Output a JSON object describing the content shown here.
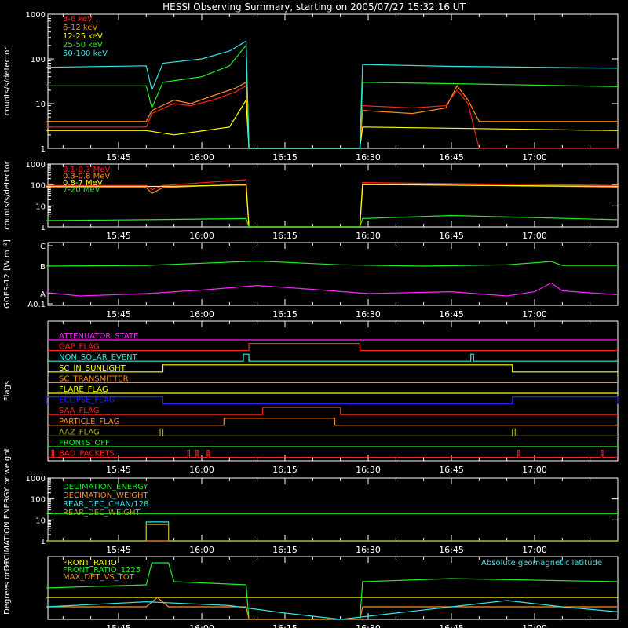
{
  "title": "HESSI Observing Summary, starting on 2005/07/27 15:32:16 UT",
  "colors": {
    "background": "#000000",
    "axes": "#ffffff",
    "red": "#ff2020",
    "orange": "#ff8c1a",
    "yellow": "#ffff00",
    "green": "#22ee22",
    "cyan": "#33e6e6",
    "magenta": "#ff22ff",
    "blue": "#2222ff",
    "olive": "#a8a820"
  },
  "time_axis": {
    "start": "15:32:16",
    "end": "17:15",
    "ticks": [
      "15:45",
      "16:00",
      "16:15",
      "16:30",
      "16:45",
      "17:00"
    ]
  },
  "chart_data": [
    {
      "type": "line",
      "ylabel": "counts/s/detector",
      "yscale": "log",
      "ylim": [
        1,
        1000
      ],
      "yticks": [
        "1",
        "10",
        "100",
        "1000"
      ],
      "legend_placement": "top-left",
      "series": [
        {
          "name": "3-6 keV",
          "color": "red",
          "points": [
            [
              "15:32",
              3
            ],
            [
              "15:40",
              3
            ],
            [
              "15:50",
              3
            ],
            [
              "15:51",
              6
            ],
            [
              "15:55",
              10
            ],
            [
              "15:58",
              9
            ],
            [
              "16:02",
              12
            ],
            [
              "16:06",
              18
            ],
            [
              "16:08",
              25
            ],
            [
              "16:08.5",
              1
            ],
            [
              "16:28.5",
              1
            ],
            [
              "16:29",
              9
            ],
            [
              "16:38",
              8
            ],
            [
              "16:44",
              9
            ],
            [
              "16:46",
              20
            ],
            [
              "16:48",
              10
            ],
            [
              "16:50",
              1
            ],
            [
              "17:15",
              1
            ]
          ]
        },
        {
          "name": "6-12 keV",
          "color": "orange",
          "points": [
            [
              "15:32",
              4
            ],
            [
              "15:50",
              4
            ],
            [
              "15:51",
              7
            ],
            [
              "15:55",
              12
            ],
            [
              "15:58",
              10
            ],
            [
              "16:02",
              15
            ],
            [
              "16:06",
              22
            ],
            [
              "16:08",
              30
            ],
            [
              "16:08.5",
              1
            ],
            [
              "16:28.5",
              1
            ],
            [
              "16:29",
              7
            ],
            [
              "16:38",
              6
            ],
            [
              "16:44",
              8
            ],
            [
              "16:46",
              25
            ],
            [
              "16:48",
              12
            ],
            [
              "16:50",
              4
            ],
            [
              "17:15",
              4
            ]
          ]
        },
        {
          "name": "12-25 keV",
          "color": "yellow",
          "points": [
            [
              "15:32",
              2.5
            ],
            [
              "15:50",
              2.5
            ],
            [
              "15:55",
              2
            ],
            [
              "16:05",
              3
            ],
            [
              "16:08",
              12
            ],
            [
              "16:08.5",
              1
            ],
            [
              "16:28.5",
              1
            ],
            [
              "16:29",
              3
            ],
            [
              "17:15",
              2.5
            ]
          ]
        },
        {
          "name": "25-50 keV",
          "color": "green",
          "points": [
            [
              "15:32",
              25
            ],
            [
              "15:50",
              25
            ],
            [
              "15:51",
              8
            ],
            [
              "15:53",
              30
            ],
            [
              "16:00",
              40
            ],
            [
              "16:05",
              70
            ],
            [
              "16:08",
              200
            ],
            [
              "16:08.5",
              1
            ],
            [
              "16:28.5",
              1
            ],
            [
              "16:29",
              30
            ],
            [
              "16:45",
              28
            ],
            [
              "17:15",
              24
            ]
          ]
        },
        {
          "name": "50-100 keV",
          "color": "cyan",
          "points": [
            [
              "15:32",
              65
            ],
            [
              "15:50",
              70
            ],
            [
              "15:51",
              20
            ],
            [
              "15:53",
              80
            ],
            [
              "16:00",
              100
            ],
            [
              "16:05",
              150
            ],
            [
              "16:08",
              250
            ],
            [
              "16:08.5",
              1
            ],
            [
              "16:28.5",
              1
            ],
            [
              "16:29",
              75
            ],
            [
              "16:45",
              68
            ],
            [
              "17:15",
              62
            ]
          ]
        }
      ]
    },
    {
      "type": "line",
      "ylabel": "counts/s/detector",
      "yscale": "log",
      "ylim": [
        1,
        1000
      ],
      "yticks": [
        "1",
        "10",
        "100",
        "1000"
      ],
      "legend_placement": "top-left",
      "series": [
        {
          "name": "0.1-0.3 MeV",
          "color": "red",
          "points": [
            [
              "15:32",
              95
            ],
            [
              "15:50",
              95
            ],
            [
              "15:51",
              60
            ],
            [
              "15:53",
              95
            ],
            [
              "16:08",
              180
            ],
            [
              "16:08.5",
              1
            ],
            [
              "16:28.5",
              1
            ],
            [
              "16:29",
              130
            ],
            [
              "17:15",
              95
            ]
          ]
        },
        {
          "name": "0.3-0.8 MeV",
          "color": "orange",
          "points": [
            [
              "15:32",
              75
            ],
            [
              "15:50",
              75
            ],
            [
              "15:51",
              40
            ],
            [
              "15:53",
              75
            ],
            [
              "16:08",
              110
            ],
            [
              "16:08.5",
              1
            ],
            [
              "16:28.5",
              1
            ],
            [
              "16:29",
              110
            ],
            [
              "17:15",
              80
            ]
          ]
        },
        {
          "name": "0.8-7 MeV",
          "color": "yellow",
          "points": [
            [
              "15:32",
              85
            ],
            [
              "15:50",
              85
            ],
            [
              "15:53",
              85
            ],
            [
              "16:08",
              100
            ],
            [
              "16:08.5",
              1
            ],
            [
              "16:28.5",
              1
            ],
            [
              "16:29",
              105
            ],
            [
              "17:15",
              85
            ]
          ]
        },
        {
          "name": "7-20 MeV",
          "color": "green",
          "points": [
            [
              "15:32",
              2
            ],
            [
              "15:50",
              2.2
            ],
            [
              "16:08",
              2.5
            ],
            [
              "16:08.5",
              1
            ],
            [
              "16:28.5",
              1
            ],
            [
              "16:29",
              2.5
            ],
            [
              "16:45",
              3.5
            ],
            [
              "17:15",
              2.2
            ]
          ]
        }
      ]
    },
    {
      "type": "line",
      "ylabel": "GOES-12 [W m⁻²]",
      "yscale": "log",
      "ylim_ticks": [
        "A0.1",
        "A",
        "B",
        "C"
      ],
      "series": [
        {
          "name": "",
          "color": "green",
          "points": [
            [
              "15:32",
              1.4e-07
            ],
            [
              "15:50",
              1.5e-07
            ],
            [
              "16:10",
              2.3e-07
            ],
            [
              "16:25",
              1.6e-07
            ],
            [
              "16:40",
              1.4e-07
            ],
            [
              "16:55",
              1.6e-07
            ],
            [
              "17:03",
              2.2e-07
            ],
            [
              "17:05",
              1.5e-07
            ],
            [
              "17:15",
              1.5e-07
            ]
          ]
        },
        {
          "name": "",
          "color": "magenta",
          "points": [
            [
              "15:32",
              1.1e-08
            ],
            [
              "15:38",
              8e-09
            ],
            [
              "15:50",
              1e-08
            ],
            [
              "16:00",
              1.4e-08
            ],
            [
              "16:10",
              2.2e-08
            ],
            [
              "16:20",
              1.5e-08
            ],
            [
              "16:30",
              1e-08
            ],
            [
              "16:45",
              1.2e-08
            ],
            [
              "16:55",
              8e-09
            ],
            [
              "17:00",
              1.2e-08
            ],
            [
              "17:03",
              2.8e-08
            ],
            [
              "17:05",
              1.3e-08
            ],
            [
              "17:15",
              9e-09
            ]
          ]
        }
      ]
    },
    {
      "type": "line",
      "ylabel": "Flags",
      "flags": [
        {
          "name": "ATTENUATOR_STATE",
          "color": "magenta",
          "raised": []
        },
        {
          "name": "GAP_FLAG",
          "color": "red",
          "raised": [
            [
              "16:08.5",
              "16:28.5"
            ]
          ]
        },
        {
          "name": "NON_SOLAR_EVENT",
          "color": "cyan",
          "raised": [
            [
              "16:07.5",
              "16:08.5"
            ],
            [
              "16:48.5",
              "16:49"
            ]
          ]
        },
        {
          "name": "SC_IN_SUNLIGHT",
          "color": "yellow",
          "raised": [
            [
              "15:53",
              "16:56"
            ]
          ]
        },
        {
          "name": "SC_TRANSMITTER",
          "color": "orange",
          "raised": []
        },
        {
          "name": "FLARE_FLAG",
          "color": "yellow",
          "raised": []
        },
        {
          "name": "ECLIPSE_FLAG",
          "color": "blue",
          "raised": [
            [
              "15:32",
              "15:53"
            ],
            [
              "16:56",
              "17:15"
            ]
          ]
        },
        {
          "name": "SAA_FLAG",
          "color": "red",
          "raised": [
            [
              "16:11",
              "16:25"
            ]
          ]
        },
        {
          "name": "PARTICLE_FLAG",
          "color": "orange",
          "raised": [
            [
              "16:04",
              "16:24"
            ]
          ]
        },
        {
          "name": "AAZ_FLAG",
          "color": "olive",
          "raised": [
            [
              "15:52.5",
              "15:53"
            ],
            [
              "16:56",
              "16:56.5"
            ]
          ]
        },
        {
          "name": "FRONTS_OFF",
          "color": "green",
          "raised": []
        },
        {
          "name": "BAD_PACKETS",
          "color": "red",
          "raised": [
            [
              "15:33",
              "15:33.3"
            ],
            [
              "15:57.5",
              "15:57.8"
            ],
            [
              "15:59",
              "15:59.3"
            ],
            [
              "16:01",
              "16:01.3"
            ],
            [
              "16:57",
              "16:57.3"
            ],
            [
              "17:12",
              "17:12.3"
            ]
          ]
        }
      ]
    },
    {
      "type": "line",
      "ylabel": "DECIMATION ENERGY or weight",
      "yscale": "log",
      "ylim": [
        1,
        1000
      ],
      "yticks": [
        "1",
        "10",
        "100",
        "1000"
      ],
      "series": [
        {
          "name": "DECIMATION_ENERGY",
          "color": "green",
          "points": [
            [
              "15:32",
              20
            ],
            [
              "17:15",
              20
            ]
          ]
        },
        {
          "name": "DECIMATION_WEIGHT",
          "color": "orange",
          "points": [
            [
              "15:32",
              1
            ],
            [
              "17:15",
              1
            ]
          ]
        },
        {
          "name": "REAR_DEC_CHAN/128",
          "color": "cyan",
          "points": [
            [
              "15:32",
              1
            ],
            [
              "15:50",
              1
            ],
            [
              "15:50",
              8
            ],
            [
              "15:54",
              8
            ],
            [
              "15:54",
              1
            ],
            [
              "17:15",
              1
            ]
          ]
        },
        {
          "name": "REAR_DEC_WEIGHT",
          "color": "olive",
          "points": [
            [
              "15:32",
              1
            ],
            [
              "15:50",
              1
            ],
            [
              "15:50",
              6
            ],
            [
              "15:54",
              6
            ],
            [
              "15:54",
              1
            ],
            [
              "17:15",
              1
            ]
          ]
        }
      ]
    },
    {
      "type": "line",
      "ylabel": "Degrees or %",
      "ylim": [
        0,
        100
      ],
      "series": [
        {
          "name": "FRONT_RATIO",
          "color": "yellow",
          "points": [
            [
              "15:32",
              35
            ],
            [
              "17:15",
              35
            ]
          ]
        },
        {
          "name": "FRONT_RATIO_1225",
          "color": "green",
          "points": [
            [
              "15:32",
              50
            ],
            [
              "15:50",
              55
            ],
            [
              "15:51",
              90
            ],
            [
              "15:54",
              90
            ],
            [
              "15:55",
              60
            ],
            [
              "16:08",
              55
            ],
            [
              "16:08.5",
              0
            ],
            [
              "16:28.5",
              0
            ],
            [
              "16:29",
              60
            ],
            [
              "16:45",
              65
            ],
            [
              "17:15",
              60
            ]
          ]
        },
        {
          "name": "MAX_DET_VS_TOT",
          "color": "orange",
          "points": [
            [
              "15:32",
              20
            ],
            [
              "15:50",
              20
            ],
            [
              "15:52",
              35
            ],
            [
              "15:54",
              20
            ],
            [
              "16:08",
              20
            ],
            [
              "16:08.5",
              0
            ],
            [
              "16:28.5",
              0
            ],
            [
              "16:29",
              20
            ],
            [
              "17:15",
              20
            ]
          ]
        },
        {
          "name": "Absolute geomagnetic latitude",
          "color": "cyan",
          "points": [
            [
              "15:32",
              20
            ],
            [
              "15:50",
              28
            ],
            [
              "16:05",
              22
            ],
            [
              "16:15",
              10
            ],
            [
              "16:25",
              0
            ],
            [
              "16:35",
              10
            ],
            [
              "16:45",
              20
            ],
            [
              "16:55",
              30
            ],
            [
              "17:05",
              20
            ],
            [
              "17:15",
              12
            ]
          ]
        }
      ]
    }
  ]
}
